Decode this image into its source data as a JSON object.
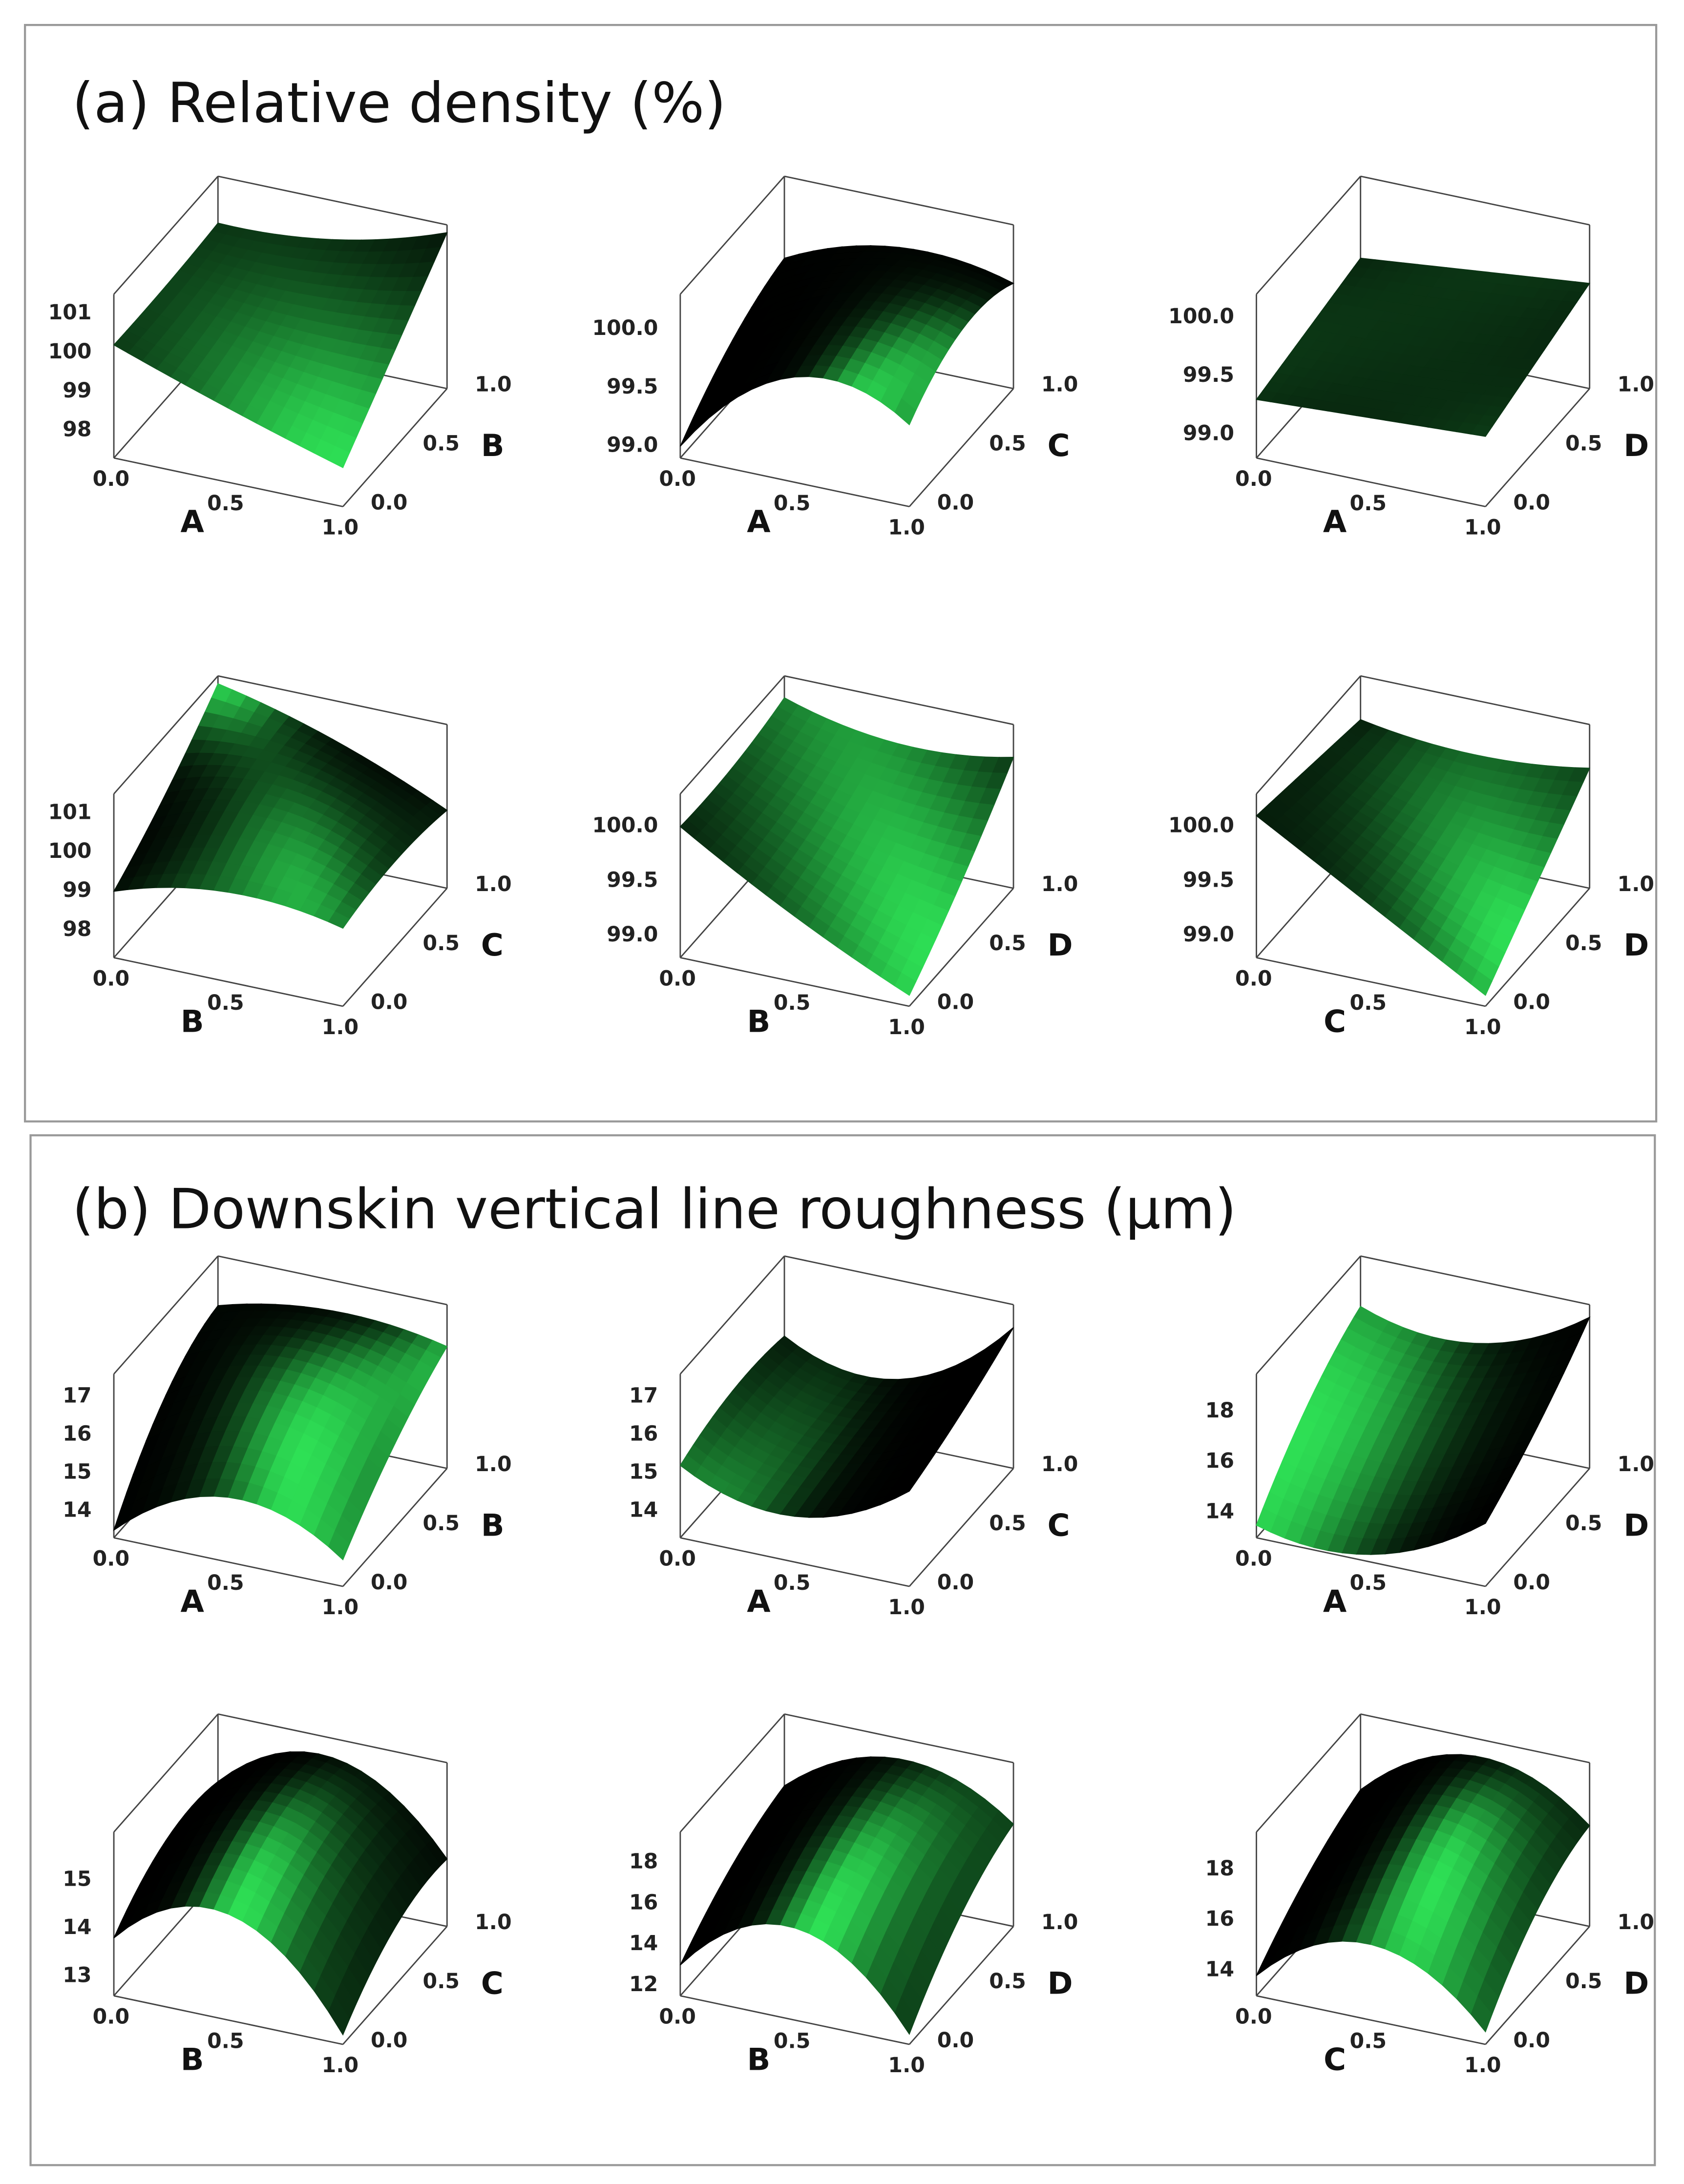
{
  "chart_data": [
    {
      "title": "(a) Relative density  (%)",
      "subplots": [
        {
          "type": "surface",
          "x_label": "A",
          "y_label": "B",
          "color": "#2ee055",
          "x": [
            0,
            0.5,
            1
          ],
          "y": [
            0,
            0.5,
            1
          ],
          "z": [
            [
              100.2,
              99.2,
              98.3
            ],
            [
              100.2,
              99.8,
              99.8
            ],
            [
              100.3,
              100.5,
              101.3
            ]
          ],
          "xlim": [
            0,
            1
          ],
          "ylim": [
            0,
            1
          ],
          "zlim": [
            97.3,
            101.5
          ],
          "xticks": [
            {
              "value": 0,
              "label": "0.0"
            },
            0.5,
            {
              "value": 1,
              "label": "1.0"
            }
          ],
          "yticks": [
            {
              "value": 0,
              "label": "0.0"
            },
            0.5,
            {
              "value": 1,
              "label": "1.0"
            }
          ],
          "zticks": [
            98,
            99,
            100,
            101
          ]
        },
        {
          "type": "surface",
          "x_label": "A",
          "y_label": "C",
          "color": "#2ee055",
          "x": [
            0,
            0.5,
            1
          ],
          "y": [
            0,
            0.5,
            1
          ],
          "z": [
            [
              99.0,
              99.8,
              99.6
            ],
            [
              99.4,
              99.95,
              99.9
            ],
            [
              99.6,
              99.9,
              99.8
            ]
          ],
          "xlim": [
            0,
            1
          ],
          "ylim": [
            0,
            1
          ],
          "zlim": [
            98.9,
            100.3
          ],
          "xticks": [
            {
              "value": 0,
              "label": "0.0"
            },
            0.5,
            {
              "value": 1,
              "label": "1.0"
            }
          ],
          "yticks": [
            {
              "value": 0,
              "label": "0.0"
            },
            0.5,
            {
              "value": 1,
              "label": "1.0"
            }
          ],
          "zticks": [
            {
              "value": 99,
              "label": "99.0"
            },
            99.5,
            {
              "value": 100,
              "label": "100.0"
            }
          ]
        },
        {
          "type": "surface",
          "x_label": "A",
          "y_label": "D",
          "color": "#2ee055",
          "x": [
            0,
            0.5,
            1
          ],
          "y": [
            0,
            0.5,
            1
          ],
          "z": [
            [
              99.3,
              99.35,
              99.4
            ],
            [
              99.4,
              99.45,
              99.55
            ],
            [
              99.5,
              99.6,
              99.7
            ]
          ],
          "xlim": [
            0,
            1
          ],
          "ylim": [
            0,
            1
          ],
          "zlim": [
            98.8,
            100.2
          ],
          "xticks": [
            {
              "value": 0,
              "label": "0.0"
            },
            0.5,
            {
              "value": 1,
              "label": "1.0"
            }
          ],
          "yticks": [
            {
              "value": 0,
              "label": "0.0"
            },
            0.5,
            {
              "value": 1,
              "label": "1.0"
            }
          ],
          "zticks": [
            {
              "value": 99,
              "label": "99.0"
            },
            99.5,
            {
              "value": 100,
              "label": "100.0"
            }
          ]
        },
        {
          "type": "surface",
          "x_label": "B",
          "y_label": "C",
          "color": "#2ee055",
          "x": [
            0,
            0.5,
            1
          ],
          "y": [
            0,
            0.5,
            1
          ],
          "z": [
            [
              99.0,
              99.6,
              99.3
            ],
            [
              100.0,
              100.5,
              99.5
            ],
            [
              101.3,
              100.5,
              99.3
            ]
          ],
          "xlim": [
            0,
            1
          ],
          "ylim": [
            0,
            1
          ],
          "zlim": [
            97.3,
            101.5
          ],
          "xticks": [
            {
              "value": 0,
              "label": "0.0"
            },
            0.5,
            {
              "value": 1,
              "label": "1.0"
            }
          ],
          "yticks": [
            {
              "value": 0,
              "label": "0.0"
            },
            0.5,
            {
              "value": 1,
              "label": "1.0"
            }
          ],
          "zticks": [
            98,
            99,
            100,
            101
          ]
        },
        {
          "type": "surface",
          "x_label": "B",
          "y_label": "D",
          "color": "#2ee055",
          "x": [
            0,
            0.5,
            1
          ],
          "y": [
            0,
            0.5,
            1
          ],
          "z": [
            [
              100.0,
              99.4,
              98.9
            ],
            [
              100.0,
              99.6,
              99.4
            ],
            [
              100.1,
              99.9,
              100.0
            ]
          ],
          "xlim": [
            0,
            1
          ],
          "ylim": [
            0,
            1
          ],
          "zlim": [
            98.8,
            100.3
          ],
          "xticks": [
            {
              "value": 0,
              "label": "0.0"
            },
            0.5,
            {
              "value": 1,
              "label": "1.0"
            }
          ],
          "yticks": [
            {
              "value": 0,
              "label": "0.0"
            },
            0.5,
            {
              "value": 1,
              "label": "1.0"
            }
          ],
          "zticks": [
            {
              "value": 99,
              "label": "99.0"
            },
            99.5,
            {
              "value": 100,
              "label": "100.0"
            }
          ]
        },
        {
          "type": "surface",
          "x_label": "C",
          "y_label": "D",
          "color": "#2ee055",
          "x": [
            0,
            0.5,
            1
          ],
          "y": [
            0,
            0.5,
            1
          ],
          "z": [
            [
              100.1,
              99.5,
              98.9
            ],
            [
              100.0,
              99.6,
              99.4
            ],
            [
              99.9,
              99.8,
              99.9
            ]
          ],
          "xlim": [
            0,
            1
          ],
          "ylim": [
            0,
            1
          ],
          "zlim": [
            98.8,
            100.3
          ],
          "xticks": [
            {
              "value": 0,
              "label": "0.0"
            },
            0.5,
            {
              "value": 1,
              "label": "1.0"
            }
          ],
          "yticks": [
            {
              "value": 0,
              "label": "0.0"
            },
            0.5,
            {
              "value": 1,
              "label": "1.0"
            }
          ],
          "zticks": [
            {
              "value": 99,
              "label": "99.0"
            },
            99.5,
            {
              "value": 100,
              "label": "100.0"
            }
          ]
        }
      ]
    },
    {
      "title": "(b) Downskin vertical line roughness (µm)",
      "subplots": [
        {
          "type": "surface",
          "x_label": "A",
          "y_label": "B",
          "color": "#2ee055",
          "x": [
            0,
            0.5,
            1
          ],
          "y": [
            0,
            0.5,
            1
          ],
          "z": [
            [
              13.5,
              15.0,
              14.0
            ],
            [
              15.5,
              16.5,
              15.5
            ],
            [
              16.3,
              16.8,
              16.5
            ]
          ],
          "xlim": [
            0,
            1
          ],
          "ylim": [
            0,
            1
          ],
          "zlim": [
            13.3,
            17.6
          ],
          "xticks": [
            {
              "value": 0,
              "label": "0.0"
            },
            0.5,
            {
              "value": 1,
              "label": "1.0"
            }
          ],
          "yticks": [
            {
              "value": 0,
              "label": "0.0"
            },
            0.5,
            {
              "value": 1,
              "label": "1.0"
            }
          ],
          "zticks": [
            14,
            15,
            16,
            17
          ]
        },
        {
          "type": "surface",
          "x_label": "A",
          "y_label": "C",
          "color": "#2ee055",
          "x": [
            0,
            0.5,
            1
          ],
          "y": [
            0,
            0.5,
            1
          ],
          "z": [
            [
              15.2,
              14.5,
              15.8
            ],
            [
              15.6,
              14.8,
              16.3
            ],
            [
              15.5,
              15.0,
              17.0
            ]
          ],
          "xlim": [
            0,
            1
          ],
          "ylim": [
            0,
            1
          ],
          "zlim": [
            13.3,
            17.6
          ],
          "xticks": [
            {
              "value": 0,
              "label": "0.0"
            },
            0.5,
            {
              "value": 1,
              "label": "1.0"
            }
          ],
          "yticks": [
            {
              "value": 0,
              "label": "0.0"
            },
            0.5,
            {
              "value": 1,
              "label": "1.0"
            }
          ],
          "zticks": [
            14,
            15,
            16,
            17
          ]
        },
        {
          "type": "surface",
          "x_label": "A",
          "y_label": "D",
          "color": "#2ee055",
          "x": [
            0,
            0.5,
            1
          ],
          "y": [
            0,
            0.5,
            1
          ],
          "z": [
            [
              13.5,
              13.3,
              15.5
            ],
            [
              16.0,
              15.5,
              17.0
            ],
            [
              17.5,
              17.0,
              19.0
            ]
          ],
          "xlim": [
            0,
            1
          ],
          "ylim": [
            0,
            1
          ],
          "zlim": [
            13.0,
            19.5
          ],
          "xticks": [
            {
              "value": 0,
              "label": "0.0"
            },
            0.5,
            {
              "value": 1,
              "label": "1.0"
            }
          ],
          "yticks": [
            {
              "value": 0,
              "label": "0.0"
            },
            0.5,
            {
              "value": 1,
              "label": "1.0"
            }
          ],
          "zticks": [
            14,
            16,
            18
          ]
        },
        {
          "type": "surface",
          "x_label": "B",
          "y_label": "C",
          "color": "#2ee055",
          "x": [
            0,
            0.5,
            1
          ],
          "y": [
            0,
            0.5,
            1
          ],
          "z": [
            [
              13.8,
              14.8,
              12.8
            ],
            [
              14.6,
              15.6,
              13.8
            ],
            [
              14.6,
              15.6,
              14.0
            ]
          ],
          "xlim": [
            0,
            1
          ],
          "ylim": [
            0,
            1
          ],
          "zlim": [
            12.6,
            16.0
          ],
          "xticks": [
            {
              "value": 0,
              "label": "0.0"
            },
            0.5,
            {
              "value": 1,
              "label": "1.0"
            }
          ],
          "yticks": [
            {
              "value": 0,
              "label": "0.0"
            },
            0.5,
            {
              "value": 1,
              "label": "1.0"
            }
          ],
          "zticks": [
            13,
            14,
            15
          ]
        },
        {
          "type": "surface",
          "x_label": "B",
          "y_label": "D",
          "color": "#2ee055",
          "x": [
            0,
            0.5,
            1
          ],
          "y": [
            0,
            0.5,
            1
          ],
          "z": [
            [
              13.0,
              16.0,
              12.0
            ],
            [
              15.0,
              18.0,
              15.0
            ],
            [
              16.0,
              18.5,
              16.5
            ]
          ],
          "xlim": [
            0,
            1
          ],
          "ylim": [
            0,
            1
          ],
          "zlim": [
            11.5,
            19.5
          ],
          "xticks": [
            {
              "value": 0,
              "label": "0.0"
            },
            0.5,
            {
              "value": 1,
              "label": "1.0"
            }
          ],
          "yticks": [
            {
              "value": 0,
              "label": "0.0"
            },
            0.5,
            {
              "value": 1,
              "label": "1.0"
            }
          ],
          "zticks": [
            12,
            14,
            16,
            18
          ]
        },
        {
          "type": "surface",
          "x_label": "C",
          "y_label": "D",
          "color": "#2ee055",
          "x": [
            0,
            0.5,
            1
          ],
          "y": [
            0,
            0.5,
            1
          ],
          "z": [
            [
              13.8,
              16.0,
              13.5
            ],
            [
              15.5,
              18.3,
              16.0
            ],
            [
              16.5,
              18.8,
              17.0
            ]
          ],
          "xlim": [
            0,
            1
          ],
          "ylim": [
            0,
            1
          ],
          "zlim": [
            13.0,
            19.5
          ],
          "xticks": [
            {
              "value": 0,
              "label": "0.0"
            },
            0.5,
            {
              "value": 1,
              "label": "1.0"
            }
          ],
          "yticks": [
            {
              "value": 0,
              "label": "0.0"
            },
            0.5,
            {
              "value": 1,
              "label": "1.0"
            }
          ],
          "zticks": [
            14,
            16,
            18
          ]
        }
      ]
    }
  ]
}
